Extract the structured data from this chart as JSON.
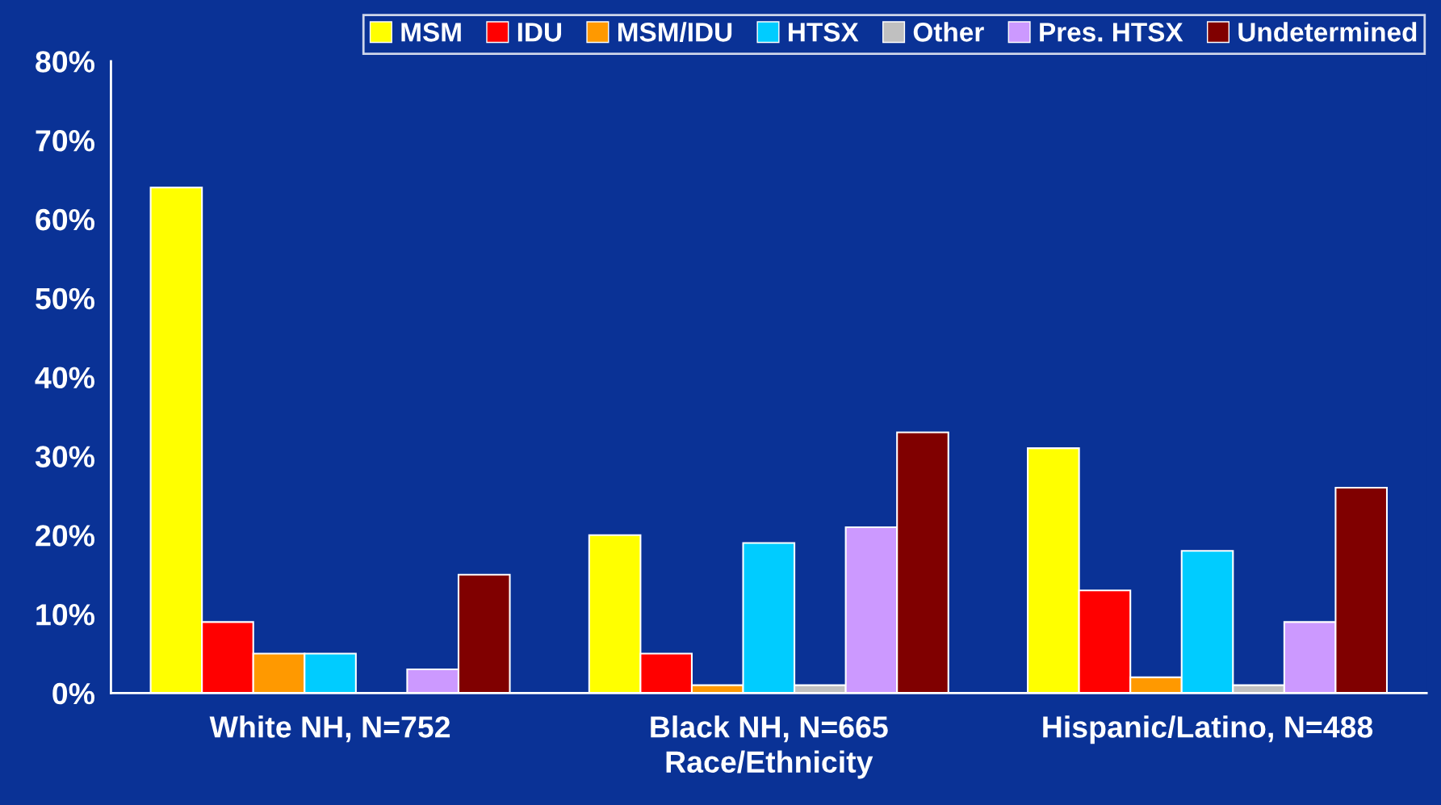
{
  "chart_data": {
    "type": "bar",
    "xlabel": "Race/Ethnicity",
    "categories": [
      "White NH, N=752",
      "Black NH, N=665",
      "Hispanic/Latino, N=488"
    ],
    "series": [
      {
        "name": "MSM",
        "color": "#ffff00",
        "values": [
          64,
          20,
          31
        ]
      },
      {
        "name": "IDU",
        "color": "#ff0000",
        "values": [
          9,
          5,
          13
        ]
      },
      {
        "name": "MSM/IDU",
        "color": "#ff9900",
        "values": [
          5,
          1,
          2
        ]
      },
      {
        "name": "HTSX",
        "color": "#00ccff",
        "values": [
          5,
          19,
          18
        ]
      },
      {
        "name": "Other",
        "color": "#c0c0c0",
        "values": [
          0,
          1,
          1
        ]
      },
      {
        "name": "Pres. HTSX",
        "color": "#cc99ff",
        "values": [
          3,
          21,
          9
        ]
      },
      {
        "name": "Undetermined",
        "color": "#800000",
        "values": [
          15,
          33,
          26
        ]
      }
    ],
    "ylim": [
      0,
      80
    ],
    "yticks": [
      {
        "value": 0,
        "label": "0%"
      },
      {
        "value": 10,
        "label": "10%"
      },
      {
        "value": 20,
        "label": "20%"
      },
      {
        "value": 30,
        "label": "30%"
      },
      {
        "value": 40,
        "label": "40%"
      },
      {
        "value": 50,
        "label": "50%"
      },
      {
        "value": 60,
        "label": "60%"
      },
      {
        "value": 70,
        "label": "70%"
      },
      {
        "value": 80,
        "label": "80%"
      }
    ],
    "grid": false,
    "legend": "top right"
  }
}
